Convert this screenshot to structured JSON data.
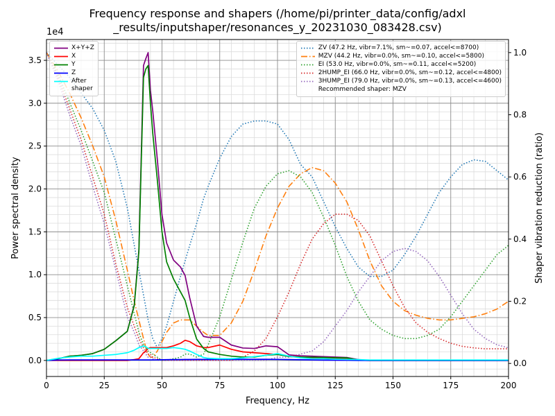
{
  "chart_data": {
    "type": "line",
    "title": "Frequency response and shapers (/home/pi/printer_data/config/adxl\n_results/inputshaper/resonances_y_20231030_083428.csv)",
    "xlabel": "Frequency, Hz",
    "ylabel": "Power spectral density",
    "y2label": "Shaper vibration reduction (ratio)",
    "y_offset_label": "1e4",
    "xlim": [
      0,
      200
    ],
    "ylim": [
      -1870,
      37430
    ],
    "y2lim": [
      -0.042,
      1.042
    ],
    "xticks": [
      0,
      25,
      50,
      75,
      100,
      125,
      150,
      175,
      200
    ],
    "yticks": [
      {
        "value": 0,
        "label": "0.0"
      },
      {
        "value": 5000,
        "label": "0.5"
      },
      {
        "value": 10000,
        "label": "1.0"
      },
      {
        "value": 15000,
        "label": "1.5"
      },
      {
        "value": 20000,
        "label": "2.0"
      },
      {
        "value": 25000,
        "label": "2.5"
      },
      {
        "value": 30000,
        "label": "3.0"
      },
      {
        "value": 35000,
        "label": "3.5"
      }
    ],
    "y2ticks": [
      {
        "value": 0,
        "label": "0.0"
      },
      0.2,
      0.4,
      0.6,
      0.8,
      {
        "value": 1,
        "label": "1.0"
      }
    ],
    "xminorticks": [
      5,
      10,
      15,
      20,
      30,
      35,
      40,
      45,
      55,
      60,
      65,
      70,
      80,
      85,
      90,
      95,
      105,
      110,
      115,
      120,
      130,
      135,
      140,
      145,
      155,
      160,
      165,
      170,
      180,
      185,
      190,
      195
    ],
    "yminorticks": [
      -1000,
      1000,
      2000,
      3000,
      4000,
      6000,
      7000,
      8000,
      9000,
      11000,
      12000,
      13000,
      14000,
      16000,
      17000,
      18000,
      19000,
      21000,
      22000,
      23000,
      24000,
      26000,
      27000,
      28000,
      29000,
      31000,
      32000,
      33000,
      34000,
      36000,
      37000
    ],
    "grid": true,
    "minor_grid": true,
    "legend": "upper left",
    "legend2": "upper right",
    "legend2_note": "Recommended shaper: MZV",
    "x": [
      0,
      5,
      10,
      15,
      20,
      25,
      30,
      35,
      38,
      40,
      42,
      43,
      44,
      45,
      46,
      48,
      50,
      52,
      55,
      58,
      60,
      62,
      65,
      68,
      70,
      75,
      80,
      85,
      90,
      95,
      100,
      105,
      110,
      115,
      120,
      125,
      130,
      135,
      140,
      145,
      150,
      155,
      160,
      165,
      170,
      175,
      180,
      185,
      190,
      195,
      200
    ],
    "series": [
      {
        "name": "X+Y+Z",
        "color": "#800080",
        "linestyle": "solid",
        "values": [
          0,
          200,
          500,
          600,
          800,
          1300,
          2300,
          3400,
          6500,
          12900,
          34400,
          35200,
          35900,
          31500,
          29100,
          23400,
          17000,
          13700,
          11700,
          10900,
          9900,
          7300,
          4000,
          2800,
          2700,
          2700,
          1800,
          1450,
          1400,
          1700,
          1600,
          650,
          550,
          500,
          450,
          400,
          350,
          100,
          0,
          0,
          0,
          0,
          0,
          0,
          0,
          0,
          0,
          0,
          0,
          0,
          0
        ]
      },
      {
        "name": "X",
        "color": "#ff0000",
        "linestyle": "solid",
        "values": [
          0,
          0,
          0,
          0,
          0,
          0,
          0,
          0,
          100,
          200,
          900,
          1100,
          1400,
          1500,
          1500,
          1500,
          1500,
          1500,
          1700,
          2000,
          2350,
          2200,
          1700,
          1500,
          1500,
          1800,
          1300,
          1000,
          900,
          800,
          700,
          500,
          400,
          300,
          250,
          250,
          200,
          50,
          0,
          0,
          0,
          0,
          0,
          0,
          0,
          0,
          0,
          0,
          0,
          0,
          0
        ]
      },
      {
        "name": "Y",
        "color": "#008000",
        "linestyle": "solid",
        "values": [
          0,
          200,
          500,
          600,
          800,
          1300,
          2300,
          3400,
          6400,
          12700,
          33000,
          34000,
          34400,
          30000,
          26500,
          21000,
          15000,
          11500,
          9500,
          8000,
          7000,
          5000,
          2500,
          1400,
          1000,
          700,
          500,
          400,
          400,
          600,
          700,
          450,
          400,
          380,
          350,
          320,
          300,
          50,
          0,
          0,
          0,
          0,
          0,
          0,
          0,
          0,
          0,
          0,
          0,
          0,
          0
        ]
      },
      {
        "name": "Z",
        "color": "#0000ff",
        "linestyle": "solid",
        "values": [
          0,
          50,
          60,
          60,
          60,
          60,
          60,
          60,
          60,
          60,
          60,
          60,
          60,
          60,
          60,
          70,
          80,
          90,
          100,
          100,
          110,
          110,
          120,
          120,
          120,
          130,
          130,
          130,
          130,
          130,
          120,
          100,
          80,
          60,
          40,
          30,
          20,
          0,
          0,
          0,
          0,
          0,
          0,
          0,
          0,
          0,
          0,
          0,
          0,
          0,
          0
        ]
      },
      {
        "name": "After\nshaper",
        "color": "#00ffff",
        "linestyle": "solid",
        "values": [
          0,
          250,
          400,
          500,
          500,
          600,
          700,
          900,
          1200,
          1500,
          1700,
          1600,
          1400,
          1400,
          1400,
          1400,
          1400,
          1400,
          1500,
          1400,
          1300,
          1100,
          700,
          350,
          250,
          200,
          200,
          300,
          450,
          600,
          800,
          500,
          300,
          200,
          200,
          150,
          120,
          100,
          50,
          50,
          50,
          50,
          50,
          50,
          50,
          50,
          50,
          50,
          50,
          50,
          50
        ]
      },
      {
        "name": "ZV (47.2 Hz, vibr=7.1%, sm~=0.07, accel<=8700)",
        "color": "#1f77b4",
        "linestyle": "dotted",
        "axis": "y2",
        "values": [
          1.0,
          0.96,
          0.92,
          0.87,
          0.82,
          0.75,
          0.65,
          0.5,
          0.38,
          0.3,
          0.22,
          0.18,
          0.14,
          0.11,
          0.08,
          0.05,
          0.08,
          0.12,
          0.2,
          0.28,
          0.33,
          0.38,
          0.45,
          0.53,
          0.57,
          0.66,
          0.73,
          0.77,
          0.78,
          0.78,
          0.77,
          0.72,
          0.64,
          0.6,
          0.52,
          0.44,
          0.37,
          0.31,
          0.28,
          0.28,
          0.3,
          0.35,
          0.41,
          0.48,
          0.55,
          0.6,
          0.64,
          0.655,
          0.65,
          0.62,
          0.59
        ]
      },
      {
        "name": "MZV (44.2 Hz, vibr=0.0%, sm~=0.10, accel<=5800)",
        "color": "#ff7f0e",
        "linestyle": "dashdot",
        "axis": "y2",
        "values": [
          1.0,
          0.94,
          0.87,
          0.79,
          0.7,
          0.6,
          0.46,
          0.3,
          0.2,
          0.14,
          0.08,
          0.05,
          0.03,
          0.02,
          0.02,
          0.04,
          0.07,
          0.1,
          0.13,
          0.14,
          0.14,
          0.14,
          0.12,
          0.1,
          0.09,
          0.09,
          0.13,
          0.2,
          0.3,
          0.41,
          0.5,
          0.57,
          0.61,
          0.63,
          0.62,
          0.58,
          0.52,
          0.43,
          0.33,
          0.25,
          0.2,
          0.17,
          0.155,
          0.145,
          0.14,
          0.14,
          0.145,
          0.15,
          0.16,
          0.175,
          0.2
        ]
      },
      {
        "name": "EI (53.0 Hz, vibr=0.0%, sm~=0.11, accel<=5200)",
        "color": "#2ca02c",
        "linestyle": "dotted",
        "axis": "y2",
        "values": [
          1.0,
          0.93,
          0.84,
          0.75,
          0.65,
          0.55,
          0.4,
          0.25,
          0.16,
          0.1,
          0.06,
          0.05,
          0.04,
          0.035,
          0.03,
          0.02,
          0.01,
          0.01,
          0.015,
          0.02,
          0.03,
          0.03,
          0.02,
          0.03,
          0.06,
          0.15,
          0.27,
          0.39,
          0.5,
          0.57,
          0.61,
          0.62,
          0.6,
          0.55,
          0.47,
          0.38,
          0.28,
          0.2,
          0.14,
          0.11,
          0.09,
          0.08,
          0.08,
          0.09,
          0.11,
          0.15,
          0.2,
          0.25,
          0.3,
          0.35,
          0.38
        ]
      },
      {
        "name": "2HUMP_EI (66.0 Hz, vibr=0.0%, sm~=0.12, accel<=4800)",
        "color": "#d62728",
        "linestyle": "dotted",
        "axis": "y2",
        "values": [
          1.0,
          0.92,
          0.82,
          0.72,
          0.6,
          0.48,
          0.32,
          0.18,
          0.12,
          0.08,
          0.05,
          0.04,
          0.03,
          0.03,
          0.02,
          0.015,
          0.01,
          0.01,
          0.01,
          0.01,
          0.01,
          0.01,
          0.01,
          0.01,
          0.01,
          0.01,
          0.01,
          0.02,
          0.04,
          0.08,
          0.15,
          0.23,
          0.32,
          0.4,
          0.45,
          0.48,
          0.48,
          0.46,
          0.41,
          0.33,
          0.25,
          0.18,
          0.13,
          0.1,
          0.08,
          0.065,
          0.055,
          0.05,
          0.047,
          0.047,
          0.047
        ]
      },
      {
        "name": "3HUMP_EI (79.0 Hz, vibr=0.0%, sm~=0.13, accel<=4600)",
        "color": "#9467bd",
        "linestyle": "dotted",
        "axis": "y2",
        "values": [
          1.0,
          0.91,
          0.8,
          0.7,
          0.57,
          0.45,
          0.3,
          0.15,
          0.1,
          0.06,
          0.04,
          0.03,
          0.02,
          0.02,
          0.015,
          0.01,
          0.01,
          0.01,
          0.01,
          0.01,
          0.01,
          0.01,
          0.01,
          0.01,
          0.01,
          0.01,
          0.01,
          0.01,
          0.01,
          0.01,
          0.02,
          0.02,
          0.03,
          0.04,
          0.07,
          0.12,
          0.17,
          0.23,
          0.28,
          0.33,
          0.36,
          0.37,
          0.36,
          0.33,
          0.28,
          0.22,
          0.16,
          0.11,
          0.08,
          0.06,
          0.05
        ]
      }
    ]
  }
}
